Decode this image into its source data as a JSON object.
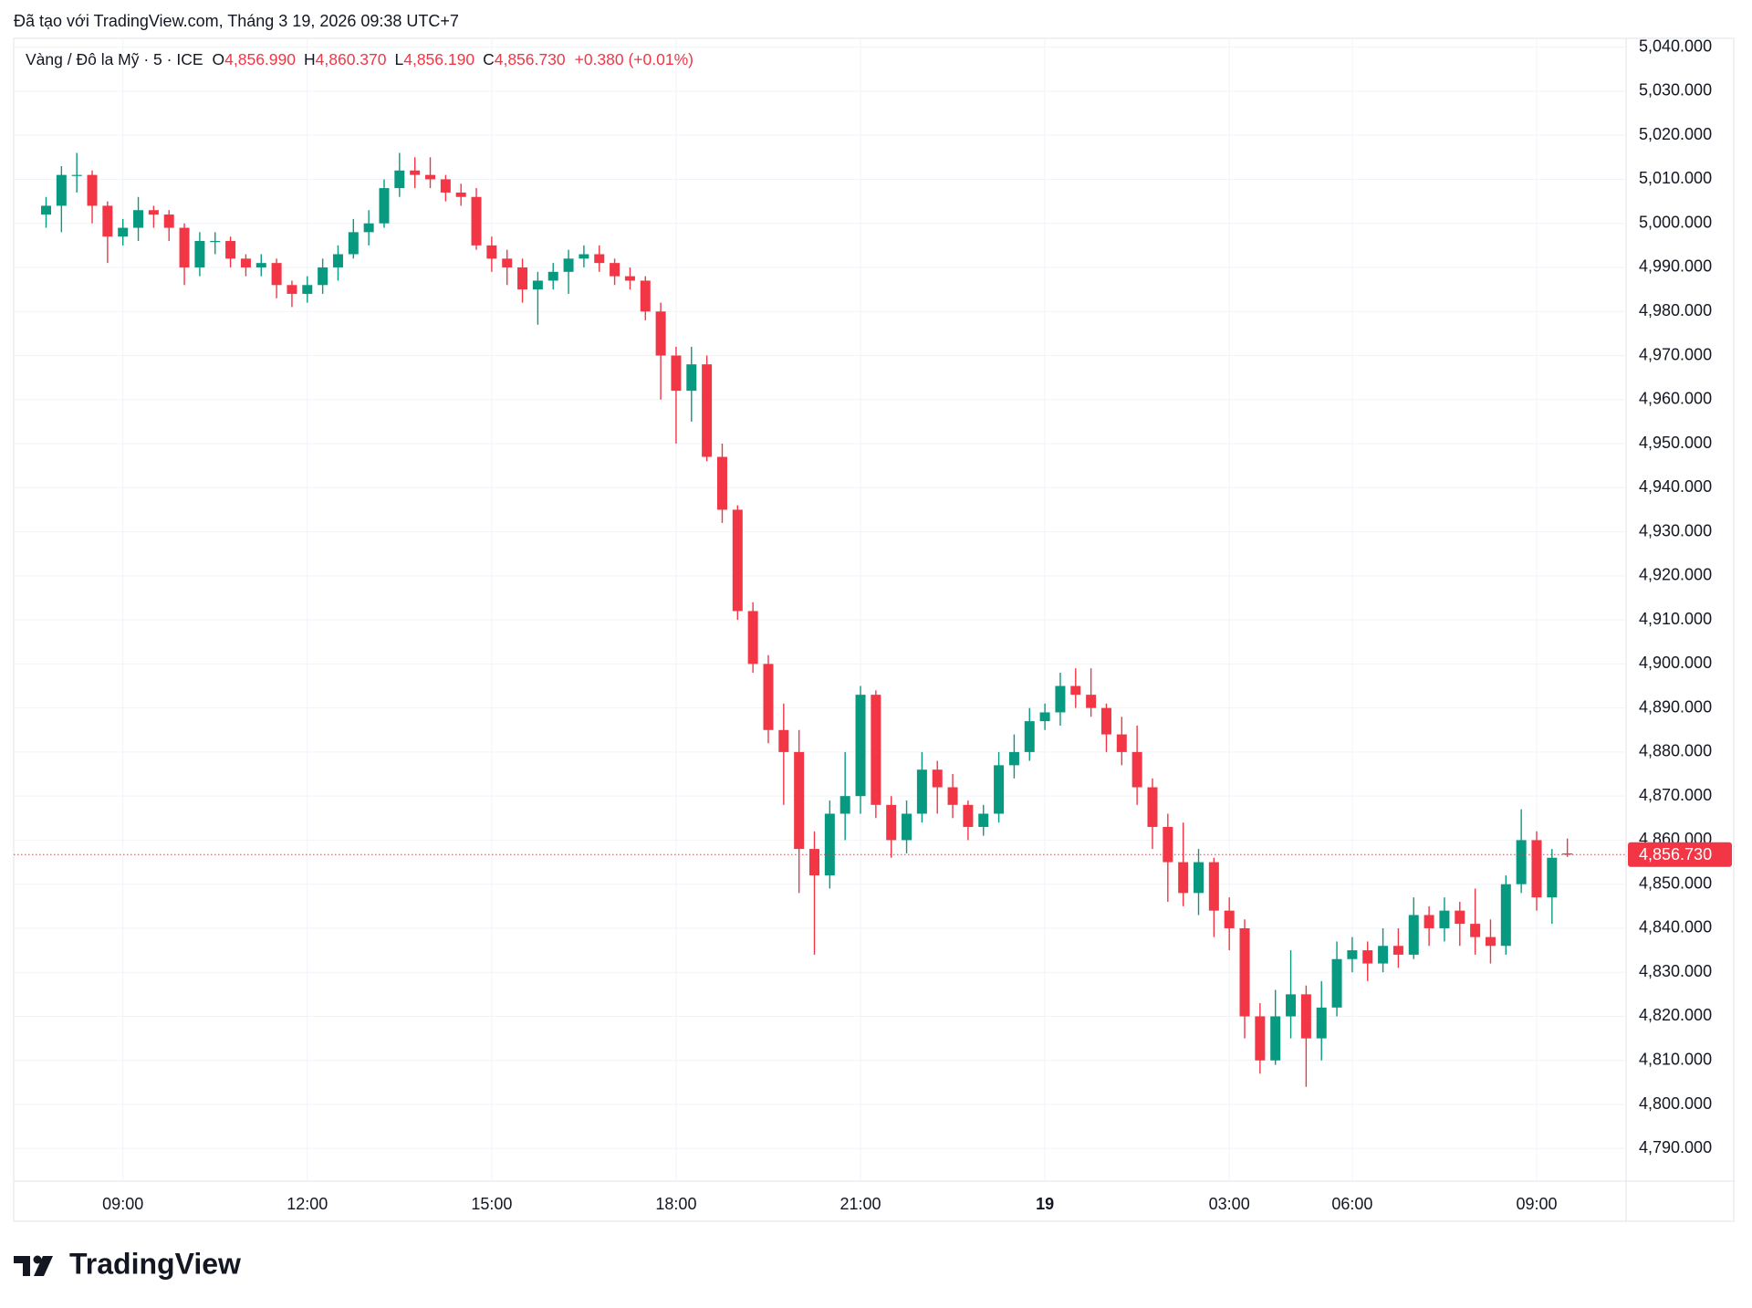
{
  "header": "Đã tạo với TradingView.com, Tháng 3 19, 2026 09:38 UTC+7",
  "brand": "TradingView",
  "chart_data": {
    "type": "candlestick",
    "title": "Vàng / Đô la Mỹ · 5 · ICE",
    "ohlc_legend": [
      {
        "key": "O",
        "value": "4,856.990"
      },
      {
        "key": "H",
        "value": "4,860.370"
      },
      {
        "key": "L",
        "value": "4,856.190"
      },
      {
        "key": "C",
        "value": "4,856.730"
      }
    ],
    "change": "+0.380 (+0.01%)",
    "last_price": {
      "value": 4856.73,
      "label": "4,856.730"
    },
    "up_color": "#089981",
    "down_color": "#f23645",
    "grid": true,
    "categories": [
      null,
      null,
      null,
      null,
      null,
      "09:00",
      null,
      null,
      null,
      null,
      null,
      null,
      null,
      null,
      null,
      null,
      null,
      "12:00",
      null,
      null,
      null,
      null,
      null,
      null,
      null,
      null,
      null,
      null,
      null,
      "15:00",
      null,
      null,
      null,
      null,
      null,
      null,
      null,
      null,
      null,
      null,
      null,
      "18:00",
      null,
      null,
      null,
      null,
      null,
      null,
      null,
      null,
      null,
      null,
      null,
      "21:00",
      null,
      null,
      null,
      null,
      null,
      null,
      null,
      null,
      null,
      null,
      null,
      "19",
      null,
      null,
      null,
      null,
      null,
      null,
      null,
      null,
      null,
      null,
      null,
      "03:00",
      null,
      null,
      null,
      null,
      null,
      null,
      null,
      "06:00",
      null,
      null,
      null,
      null,
      null,
      null,
      null,
      null,
      null,
      null,
      null,
      "09:00",
      null,
      null
    ],
    "open": [
      5002,
      5004,
      5011,
      5011,
      5004,
      4997,
      4999,
      5003,
      5002,
      4999,
      4990,
      4996,
      4996,
      4992,
      4990,
      4991,
      4986,
      4984,
      4986,
      4990,
      4993,
      4998,
      5000,
      5008,
      5012,
      5011,
      5010,
      5007,
      5006,
      4995,
      4992,
      4990,
      4985,
      4987,
      4989,
      4992,
      4993,
      4991,
      4988,
      4987,
      4980,
      4970,
      4962,
      4968,
      4947,
      4935,
      4912,
      4900,
      4885,
      4880,
      4858,
      4852,
      4866,
      4870,
      4893,
      4868,
      4860,
      4866,
      4876,
      4872,
      4868,
      4863,
      4866,
      4877,
      4880,
      4887,
      4889,
      4895,
      4893,
      4890,
      4884,
      4880,
      4872,
      4863,
      4855,
      4848,
      4855,
      4844,
      4840,
      4820,
      4810,
      4820,
      4825,
      4815,
      4822,
      4833,
      4835,
      4832,
      4836,
      4834,
      4843,
      4840,
      4844,
      4841,
      4838,
      4836,
      4850,
      4860,
      4847,
      4856.99
    ],
    "high": [
      5006,
      5013,
      5016,
      5012,
      5005,
      5001,
      5006,
      5004,
      5003,
      5000,
      4998,
      4998,
      4997,
      4993,
      4993,
      4992,
      4987,
      4988,
      4992,
      4995,
      5001,
      5003,
      5010,
      5016,
      5015,
      5015,
      5011,
      5009,
      5008,
      4997,
      4994,
      4992,
      4989,
      4991,
      4994,
      4995,
      4995,
      4992,
      4990,
      4988,
      4982,
      4972,
      4972,
      4970,
      4950,
      4936,
      4914,
      4902,
      4891,
      4885,
      4862,
      4869,
      4880,
      4895,
      4894,
      4870,
      4869,
      4880,
      4878,
      4875,
      4869,
      4868,
      4880,
      4884,
      4890,
      4891,
      4898,
      4899,
      4899,
      4891,
      4888,
      4886,
      4874,
      4866,
      4864,
      4858,
      4856,
      4847,
      4842,
      4823,
      4826,
      4835,
      4827,
      4828,
      4837,
      4838,
      4837,
      4840,
      4840,
      4847,
      4845,
      4847,
      4846,
      4849,
      4842,
      4852,
      4867,
      4862,
      4858,
      4860.37
    ],
    "low": [
      4999,
      4998,
      5007,
      5000,
      4991,
      4995,
      4996,
      4999,
      4996,
      4986,
      4988,
      4993,
      4990,
      4988,
      4988,
      4983,
      4981,
      4982,
      4984,
      4987,
      4992,
      4995,
      4999,
      5006,
      5008,
      5008,
      5005,
      5004,
      4994,
      4989,
      4986,
      4982,
      4977,
      4985,
      4984,
      4990,
      4989,
      4986,
      4985,
      4978,
      4960,
      4950,
      4955,
      4946,
      4932,
      4910,
      4898,
      4882,
      4868,
      4848,
      4834,
      4849,
      4860,
      4866,
      4865,
      4856,
      4857,
      4864,
      4866,
      4865,
      4860,
      4861,
      4864,
      4874,
      4878,
      4885,
      4886,
      4890,
      4888,
      4880,
      4877,
      4868,
      4858,
      4846,
      4845,
      4843,
      4838,
      4835,
      4815,
      4807,
      4809,
      4815,
      4804,
      4810,
      4820,
      4830,
      4828,
      4830,
      4831,
      4833,
      4836,
      4837,
      4836,
      4834,
      4832,
      4834,
      4848,
      4844,
      4841,
      4856.19
    ],
    "close": [
      5004,
      5011,
      5011,
      5004,
      4997,
      4999,
      5003,
      5002,
      4999,
      4990,
      4996,
      4996,
      4992,
      4990,
      4991,
      4986,
      4984,
      4986,
      4990,
      4993,
      4998,
      5000,
      5008,
      5012,
      5011,
      5010,
      5007,
      5006,
      4995,
      4992,
      4990,
      4985,
      4987,
      4989,
      4992,
      4993,
      4991,
      4988,
      4987,
      4980,
      4970,
      4962,
      4968,
      4947,
      4935,
      4912,
      4900,
      4885,
      4880,
      4858,
      4852,
      4866,
      4870,
      4893,
      4868,
      4860,
      4866,
      4876,
      4872,
      4868,
      4863,
      4866,
      4877,
      4880,
      4887,
      4889,
      4895,
      4893,
      4890,
      4884,
      4880,
      4872,
      4863,
      4855,
      4848,
      4855,
      4844,
      4840,
      4820,
      4810,
      4820,
      4825,
      4815,
      4822,
      4833,
      4835,
      4832,
      4836,
      4834,
      4843,
      4840,
      4844,
      4841,
      4838,
      4836,
      4850,
      4860,
      4847,
      4856,
      4856.73
    ],
    "ylim": [
      4782.6,
      5042
    ],
    "yticks": [
      {
        "value": 4790,
        "label": "4,790.000"
      },
      {
        "value": 4800,
        "label": "4,800.000"
      },
      {
        "value": 4810,
        "label": "4,810.000"
      },
      {
        "value": 4820,
        "label": "4,820.000"
      },
      {
        "value": 4830,
        "label": "4,830.000"
      },
      {
        "value": 4840,
        "label": "4,840.000"
      },
      {
        "value": 4850,
        "label": "4,850.000"
      },
      {
        "value": 4860,
        "label": "4,860.000"
      },
      {
        "value": 4870,
        "label": "4,870.000"
      },
      {
        "value": 4880,
        "label": "4,880.000"
      },
      {
        "value": 4890,
        "label": "4,890.000"
      },
      {
        "value": 4900,
        "label": "4,900.000"
      },
      {
        "value": 4910,
        "label": "4,910.000"
      },
      {
        "value": 4920,
        "label": "4,920.000"
      },
      {
        "value": 4930,
        "label": "4,930.000"
      },
      {
        "value": 4940,
        "label": "4,940.000"
      },
      {
        "value": 4950,
        "label": "4,950.000"
      },
      {
        "value": 4960,
        "label": "4,960.000"
      },
      {
        "value": 4970,
        "label": "4,970.000"
      },
      {
        "value": 4980,
        "label": "4,980.000"
      },
      {
        "value": 4990,
        "label": "4,990.000"
      },
      {
        "value": 5000,
        "label": "5,000.000"
      },
      {
        "value": 5010,
        "label": "5,010.000"
      },
      {
        "value": 5020,
        "label": "5,020.000"
      },
      {
        "value": 5030,
        "label": "5,030.000"
      },
      {
        "value": 5040,
        "label": "5,040.000"
      }
    ]
  }
}
